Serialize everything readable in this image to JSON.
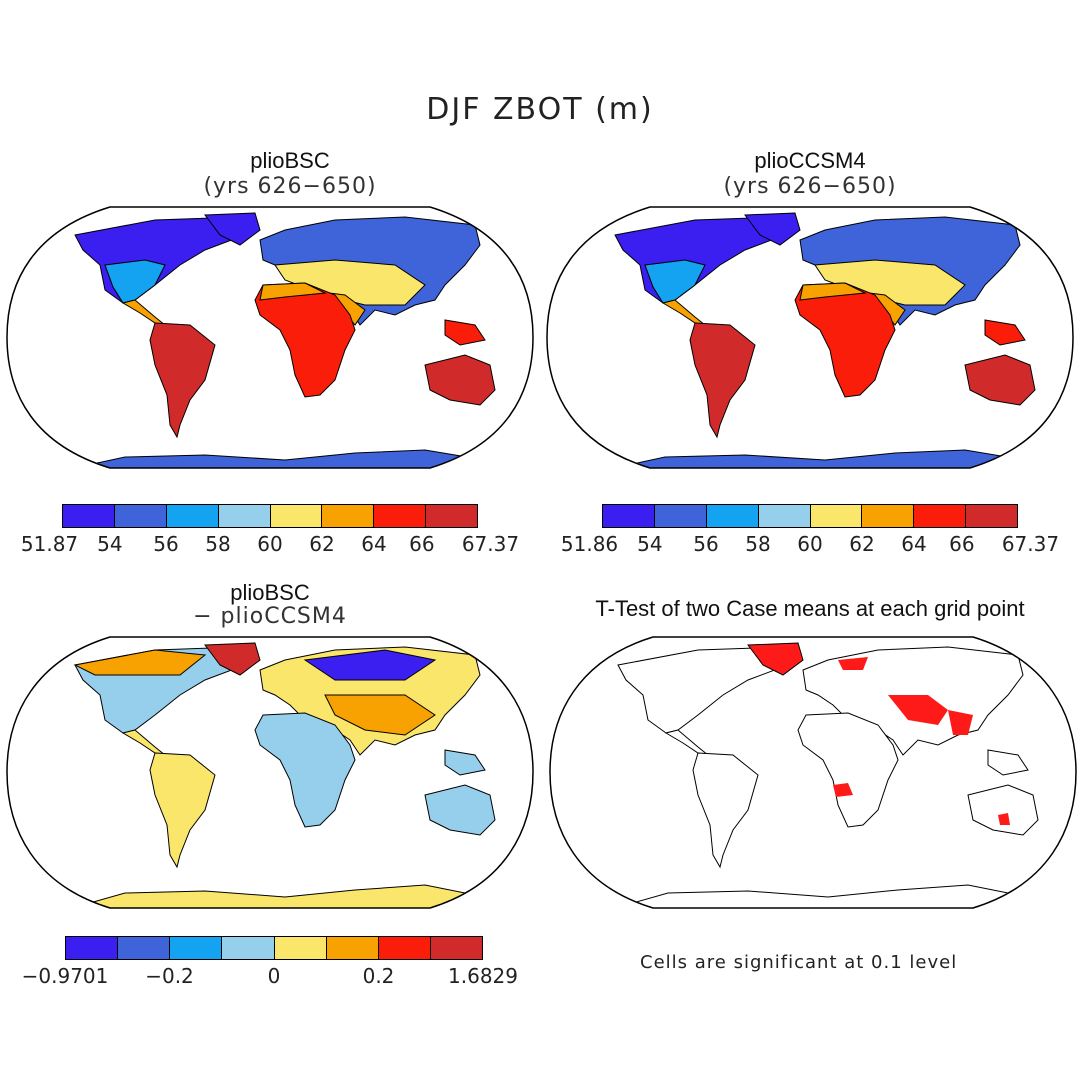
{
  "figure": {
    "title": "DJF ZBOT (m)"
  },
  "panels": [
    {
      "title": "plioBSC",
      "subtitle": "(yrs 626−650)",
      "variant": "abs"
    },
    {
      "title": "plioCCSM4",
      "subtitle": "(yrs 626−650)",
      "variant": "abs"
    },
    {
      "title": "plioBSC",
      "subtitle": "− plioCCSM4",
      "variant": "diff"
    },
    {
      "title": "T-Test of two Case means at each grid point",
      "subtitle": "",
      "variant": "ttest"
    }
  ],
  "colorbars": {
    "colors": [
      "#3b1ef0",
      "#3f63d9",
      "#14a3f0",
      "#96cfeb",
      "#fae66a",
      "#f7a200",
      "#fa1e0a",
      "#d12a2a"
    ],
    "bsc_ticks": [
      "51.87",
      "54",
      "56",
      "58",
      "60",
      "62",
      "64",
      "66",
      "67.37"
    ],
    "ccsm4_ticks": [
      "51.86",
      "54",
      "56",
      "58",
      "60",
      "62",
      "64",
      "66",
      "67.37"
    ],
    "diff_ticks": [
      "−0.9701",
      "−0.2",
      "0",
      "0.2",
      "1.6829"
    ]
  },
  "significance": {
    "note": "Cells are significant at 0.1 level",
    "color": "#ff1a1a"
  },
  "chart_data": [
    {
      "type": "heatmap",
      "title": "plioBSC (yrs 626−650)",
      "variable": "ZBOT",
      "units": "m",
      "season": "DJF",
      "levels": [
        51.87,
        54,
        56,
        58,
        60,
        62,
        64,
        66,
        67.37
      ]
    },
    {
      "type": "heatmap",
      "title": "plioCCSM4 (yrs 626−650)",
      "variable": "ZBOT",
      "units": "m",
      "season": "DJF",
      "levels": [
        51.86,
        54,
        56,
        58,
        60,
        62,
        64,
        66,
        67.37
      ]
    },
    {
      "type": "heatmap",
      "title": "plioBSC − plioCCSM4",
      "variable": "ZBOT difference",
      "units": "m",
      "season": "DJF",
      "levels": [
        -0.9701,
        -0.2,
        0,
        0.2,
        1.6829
      ]
    },
    {
      "type": "heatmap",
      "title": "T-Test of two Case means at each grid point",
      "significance_level": 0.1
    }
  ]
}
